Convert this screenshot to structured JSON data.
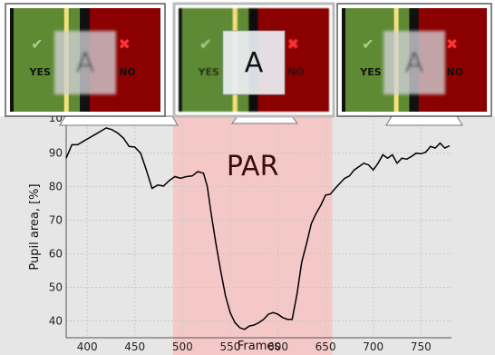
{
  "chart_data": {
    "type": "line",
    "title": "",
    "xlabel": "Frames",
    "ylabel": "Pupil area, [%]",
    "xlim": [
      378,
      782
    ],
    "ylim": [
      35,
      101
    ],
    "grid": true,
    "xticks": [
      400,
      450,
      500,
      550,
      600,
      650,
      700,
      750
    ],
    "yticks": [
      40,
      50,
      60,
      70,
      80,
      90
    ],
    "yticks_partial": [
      "10"
    ],
    "highlight": {
      "x_start": 490,
      "x_end": 657,
      "label": "PAR",
      "color": "#f5c8c8"
    },
    "series": [
      {
        "x": [
          378,
          384,
          390,
          396,
          402,
          408,
          414,
          420,
          426,
          432,
          438,
          444,
          450,
          456,
          462,
          468,
          474,
          480,
          486,
          492,
          498,
          504,
          510,
          516,
          522,
          526,
          530,
          535,
          540,
          545,
          550,
          555,
          560,
          565,
          570,
          575,
          580,
          585,
          590,
          595,
          600,
          605,
          610,
          615,
          620,
          625,
          630,
          635,
          640,
          645,
          650,
          655,
          660,
          665,
          670,
          675,
          680,
          685,
          690,
          695,
          700,
          705,
          710,
          715,
          720,
          725,
          730,
          735,
          740,
          745,
          750,
          755,
          760,
          765,
          770,
          775,
          780
        ],
        "y": [
          88.5,
          92.5,
          92.5,
          93.5,
          94.5,
          95.5,
          96.5,
          97.5,
          97.0,
          96.0,
          94.5,
          92.0,
          91.8,
          90.0,
          85.0,
          79.5,
          80.5,
          80.2,
          81.8,
          83.0,
          82.5,
          83.0,
          83.2,
          84.5,
          84.0,
          80.0,
          72.0,
          63.0,
          55.0,
          47.5,
          42.5,
          39.5,
          38.0,
          37.5,
          38.5,
          38.8,
          39.5,
          40.5,
          42.0,
          42.5,
          42.0,
          41.0,
          40.5,
          40.5,
          48.0,
          57.5,
          63.0,
          69.0,
          72.0,
          74.5,
          77.5,
          77.8,
          79.5,
          81.0,
          82.5,
          83.2,
          85.0,
          86.0,
          87.0,
          86.5,
          85.0,
          87.0,
          89.5,
          88.5,
          89.5,
          87.0,
          88.5,
          88.2,
          89.0,
          90.0,
          89.8,
          90.3,
          92.0,
          91.5,
          93.0,
          91.5,
          92.2
        ],
        "color": "#000000"
      }
    ]
  },
  "thumbnails": [
    {
      "yes_label": "YES",
      "no_label": "NO",
      "letter": "A",
      "state": "blurred"
    },
    {
      "yes_label": "YES",
      "no_label": "NO",
      "letter": "A",
      "state": "focused"
    },
    {
      "yes_label": "YES",
      "no_label": "NO",
      "letter": "A",
      "state": "blurred"
    }
  ],
  "colors": {
    "plot_bg": "#e6e6e6",
    "grid": "#c8c8c8",
    "yes_panel": "#5f8a34",
    "no_panel": "#8b0000",
    "divider": "#f2e07a",
    "check": "#a8d08d",
    "cross": "#ff3333"
  }
}
